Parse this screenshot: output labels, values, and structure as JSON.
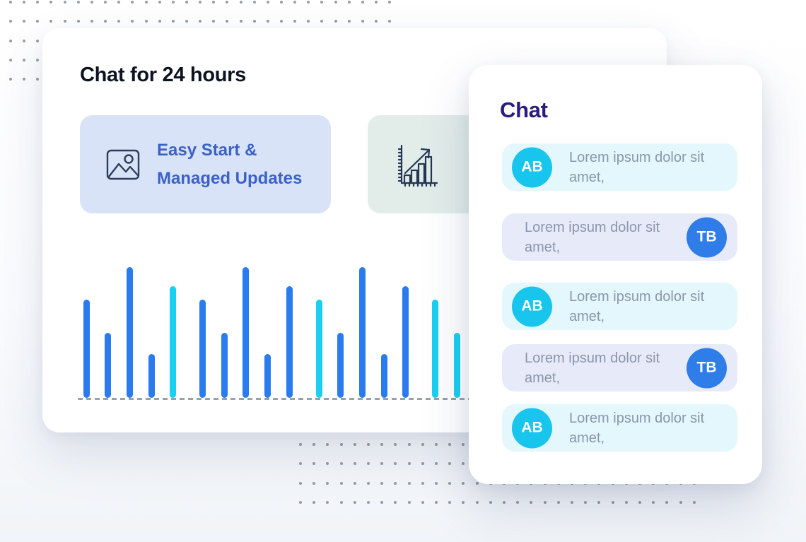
{
  "page": {
    "background_top": "#ffffff",
    "background_bottom": "#f1f4f8",
    "dot_color": "#7f868f"
  },
  "main_card": {
    "title": "Chat for 24 hours",
    "title_color": "#0d1320",
    "features": [
      {
        "icon": "image-icon",
        "label_line1": "Easy Start &",
        "label_line2": "Managed Updates",
        "bg": "#d9e3f8",
        "label_color": "#3b61c7"
      },
      {
        "icon": "growth-chart-icon",
        "bg": "#e2edea"
      }
    ],
    "icon_stroke_color": "#2e3d59"
  },
  "chart_data": {
    "type": "bar",
    "title": "",
    "xlabel": "",
    "ylabel": "",
    "categories": [],
    "values": [
      139,
      92,
      185,
      62,
      158,
      139,
      92,
      185,
      62,
      158,
      139,
      92,
      185,
      62,
      158,
      139,
      92
    ],
    "colors": [
      "blue",
      "blue",
      "blue",
      "blue",
      "cyan",
      "blue",
      "blue",
      "blue",
      "blue",
      "blue",
      "cyan",
      "blue",
      "blue",
      "blue",
      "blue",
      "cyan",
      "cyan"
    ],
    "palette": {
      "blue": "#2b7bf0",
      "cyan": "#19d0f2"
    },
    "group_size": 5,
    "grid": false,
    "legend": false,
    "baseline_style": "dashed",
    "baseline_color": "#98a0a8"
  },
  "chat_panel": {
    "title": "Chat",
    "title_color": "#2b1b80",
    "messages": [
      {
        "avatar": "AB",
        "side": "left",
        "text": "Lorem ipsum dolor sit amet,"
      },
      {
        "avatar": "TB",
        "side": "right",
        "text": "Lorem ipsum dolor sit amet,"
      },
      {
        "avatar": "AB",
        "side": "left",
        "text": "Lorem ipsum dolor sit amet,"
      },
      {
        "avatar": "TB",
        "side": "right",
        "text": "Lorem ipsum dolor sit amet,"
      },
      {
        "avatar": "AB",
        "side": "left",
        "text": "Lorem ipsum dolor sit amet,"
      }
    ],
    "avatar_colors": {
      "AB": "#18c5ec",
      "TB": "#2e7de9"
    },
    "bubble_colors": {
      "left": "#e3f7fd",
      "right": "#e7ebf9"
    },
    "text_color": "#8b96ab"
  }
}
